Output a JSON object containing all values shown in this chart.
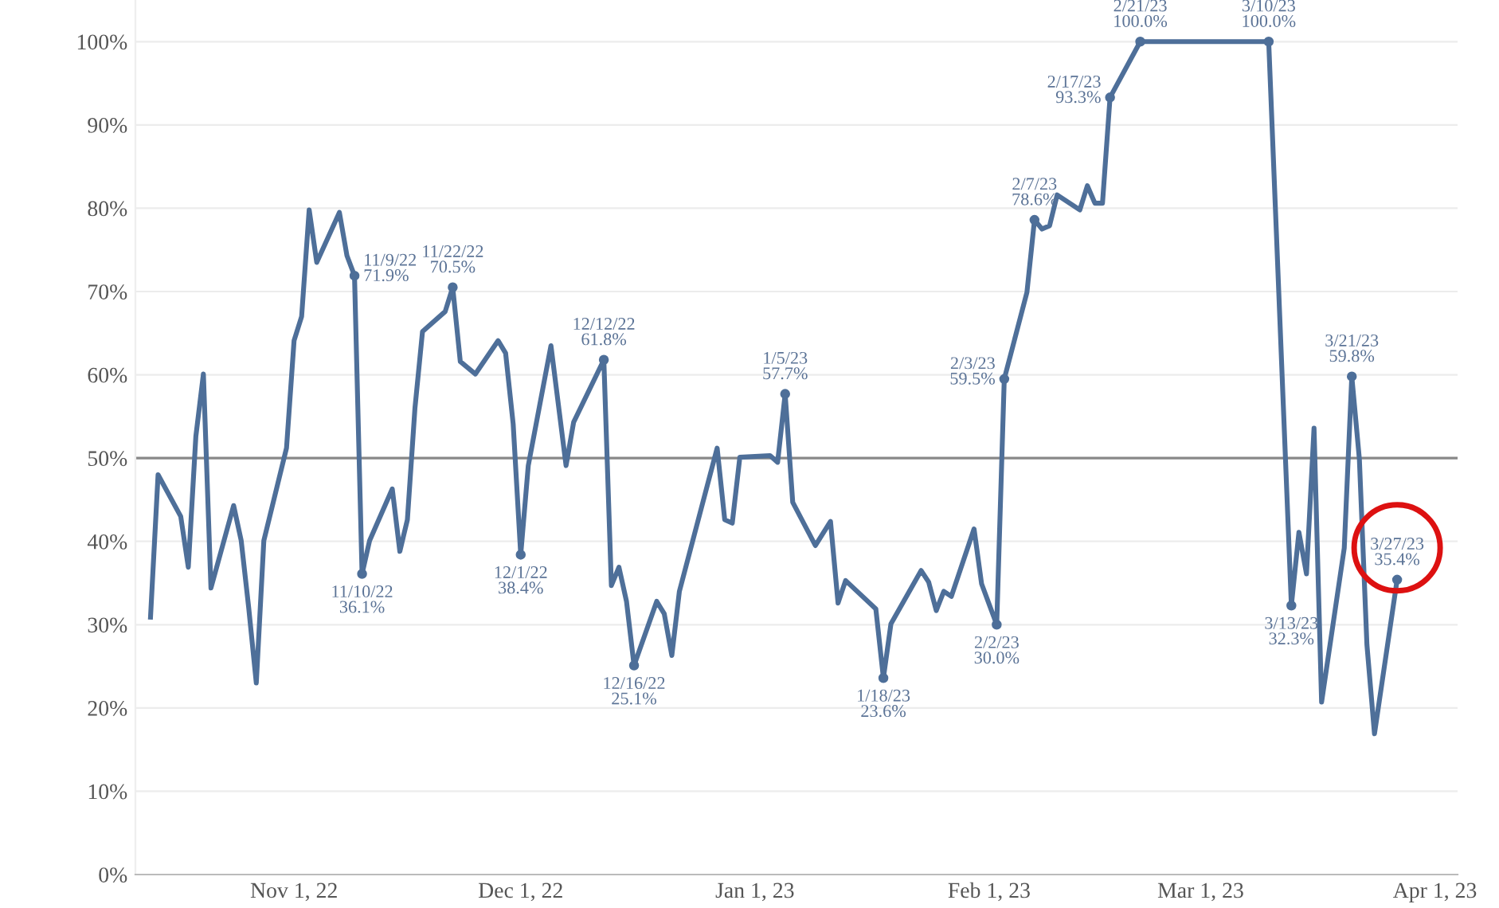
{
  "chart_data": {
    "type": "line",
    "x": [
      "2022-10-13",
      "2022-10-14",
      "2022-10-17",
      "2022-10-18",
      "2022-10-19",
      "2022-10-20",
      "2022-10-21",
      "2022-10-24",
      "2022-10-25",
      "2022-10-26",
      "2022-10-27",
      "2022-10-28",
      "2022-10-31",
      "2022-11-01",
      "2022-11-02",
      "2022-11-03",
      "2022-11-04",
      "2022-11-07",
      "2022-11-08",
      "2022-11-09",
      "2022-11-10",
      "2022-11-11",
      "2022-11-14",
      "2022-11-15",
      "2022-11-16",
      "2022-11-17",
      "2022-11-18",
      "2022-11-21",
      "2022-11-22",
      "2022-11-23",
      "2022-11-25",
      "2022-11-28",
      "2022-11-29",
      "2022-11-30",
      "2022-12-01",
      "2022-12-02",
      "2022-12-05",
      "2022-12-07",
      "2022-12-08",
      "2022-12-12",
      "2022-12-13",
      "2022-12-14",
      "2022-12-15",
      "2022-12-16",
      "2022-12-19",
      "2022-12-20",
      "2022-12-21",
      "2022-12-22",
      "2022-12-27",
      "2022-12-28",
      "2022-12-29",
      "2022-12-30",
      "2023-01-03",
      "2023-01-04",
      "2023-01-05",
      "2023-01-06",
      "2023-01-09",
      "2023-01-11",
      "2023-01-12",
      "2023-01-13",
      "2023-01-17",
      "2023-01-18",
      "2023-01-19",
      "2023-01-23",
      "2023-01-24",
      "2023-01-25",
      "2023-01-26",
      "2023-01-27",
      "2023-01-30",
      "2023-01-31",
      "2023-02-02",
      "2023-02-03",
      "2023-02-06",
      "2023-02-07",
      "2023-02-08",
      "2023-02-09",
      "2023-02-10",
      "2023-02-13",
      "2023-02-14",
      "2023-02-15",
      "2023-02-16",
      "2023-02-17",
      "2023-02-21",
      "2023-03-10",
      "2023-03-13",
      "2023-03-14",
      "2023-03-15",
      "2023-03-16",
      "2023-03-17",
      "2023-03-20",
      "2023-03-21",
      "2023-03-22",
      "2023-03-23",
      "2023-03-24",
      "2023-03-27"
    ],
    "series": [
      {
        "color": "#4e6f99",
        "values": [
          30.9,
          48.0,
          43,
          36.9,
          52.6,
          60.1,
          34.4,
          44.3,
          40.1,
          32,
          23.0,
          40.1,
          51.2,
          64.1,
          67.0,
          79.8,
          73.5,
          79.5,
          74.3,
          71.9,
          36.1,
          40.1,
          46.3,
          38.8,
          42.6,
          56.0,
          65.2,
          67.6,
          70.5,
          61.6,
          60.1,
          64.1,
          62.6,
          54.1,
          38.4,
          49.1,
          63.5,
          49.1,
          54.3,
          61.8,
          34.7,
          36.9,
          32.8,
          25.1,
          32.8,
          31.3,
          26.3,
          34.0,
          51.2,
          42.6,
          42.2,
          50.1,
          50.3,
          49.5,
          57.7,
          44.7,
          39.5,
          42.4,
          32.6,
          35.3,
          31.9,
          23.6,
          30.1,
          36.5,
          35.1,
          31.7,
          34.0,
          33.4,
          41.5,
          34.9,
          30.0,
          59.5,
          69.9,
          78.6,
          77.5,
          77.9,
          81.6,
          79.8,
          82.7,
          80.6,
          80.6,
          93.3,
          100.0,
          100.0,
          32.3,
          41.1,
          36.1,
          53.6,
          20.7,
          39.2,
          59.8,
          49.9,
          27.6,
          16.9,
          35.4
        ]
      }
    ],
    "xlim": [
      "2022-10-11",
      "2023-04-04"
    ],
    "xticks": [
      {
        "value": "2022-11-01",
        "label": "Nov 1, 22"
      },
      {
        "value": "2022-12-01",
        "label": "Dec 1, 22"
      },
      {
        "value": "2023-01-01",
        "label": "Jan 1, 23"
      },
      {
        "value": "2023-02-01",
        "label": "Feb 1, 23"
      },
      {
        "value": "2023-03-01",
        "label": "Mar 1, 23"
      },
      {
        "value": "2023-04-01",
        "label": "Apr 1, 23"
      }
    ],
    "ylim": [
      0,
      105
    ],
    "yticks": [
      {
        "value": 0,
        "label": "0%"
      },
      {
        "value": 10,
        "label": "10%"
      },
      {
        "value": 20,
        "label": "20%"
      },
      {
        "value": 30,
        "label": "30%"
      },
      {
        "value": 40,
        "label": "40%"
      },
      {
        "value": 50,
        "label": "50%"
      },
      {
        "value": 60,
        "label": "60%"
      },
      {
        "value": 70,
        "label": "70%"
      },
      {
        "value": 80,
        "label": "80%"
      },
      {
        "value": 90,
        "label": "90%"
      },
      {
        "value": 100,
        "label": "100%"
      }
    ],
    "grid": "y",
    "ref_lines": [
      {
        "axis": "y",
        "value": 50,
        "color": "#888888"
      }
    ],
    "annotations": [
      {
        "text": "11/9/22\n71.9%",
        "x": "2022-11-09",
        "y": 71.9
      },
      {
        "text": "11/10/22\n36.1%",
        "x": "2022-11-10",
        "y": 36.1
      },
      {
        "text": "11/22/22\n70.5%",
        "x": "2022-11-22",
        "y": 70.5
      },
      {
        "text": "12/1/22\n38.4%",
        "x": "2022-12-01",
        "y": 38.4
      },
      {
        "text": "12/12/22\n61.8%",
        "x": "2022-12-12",
        "y": 61.8
      },
      {
        "text": "12/16/22\n25.1%",
        "x": "2022-12-16",
        "y": 25.1
      },
      {
        "text": "1/5/23\n57.7%",
        "x": "2023-01-05",
        "y": 57.7
      },
      {
        "text": "1/18/23\n23.6%",
        "x": "2023-01-18",
        "y": 23.6
      },
      {
        "text": "2/2/23\n30.0%",
        "x": "2023-02-02",
        "y": 30.0
      },
      {
        "text": "2/3/23\n59.5%",
        "x": "2023-02-03",
        "y": 59.5
      },
      {
        "text": "2/7/23\n78.6%",
        "x": "2023-02-07",
        "y": 78.6
      },
      {
        "text": "2/17/23\n93.3%",
        "x": "2023-02-17",
        "y": 93.3
      },
      {
        "text": "2/21/23\n100.0%",
        "x": "2023-02-21",
        "y": 100.0
      },
      {
        "text": "3/10/23\n100.0%",
        "x": "2023-03-10",
        "y": 100.0
      },
      {
        "text": "3/13/23\n32.3%",
        "x": "2023-03-13",
        "y": 32.3
      },
      {
        "text": "3/21/23\n59.8%",
        "x": "2023-03-21",
        "y": 59.8
      },
      {
        "text": "3/27/23\n35.4%",
        "x": "2023-03-27",
        "y": 35.4
      }
    ],
    "marker": "none",
    "line_style": "solid",
    "legend": false
  }
}
